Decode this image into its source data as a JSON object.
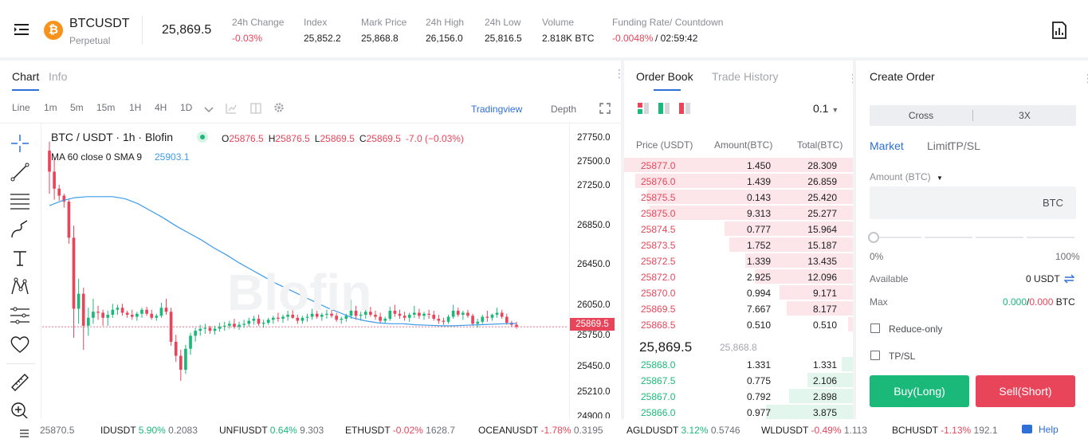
{
  "header": {
    "symbol": "BTCUSDT",
    "subtitle": "Perpetual",
    "coin_glyph": "₿",
    "price": "25,869.5",
    "stats": [
      {
        "label": "24h Change",
        "value": "-0.03%",
        "tone": "red"
      },
      {
        "label": "Index",
        "value": "25,852.2",
        "tone": ""
      },
      {
        "label": "Mark Price",
        "value": "25,868.8",
        "tone": ""
      },
      {
        "label": "24h High",
        "value": "26,156.0",
        "tone": ""
      },
      {
        "label": "24h Low",
        "value": "25,816.5",
        "tone": ""
      },
      {
        "label": "Volume",
        "value": "2.818K BTC",
        "tone": ""
      },
      {
        "label": "Funding Rate/ Countdown",
        "value": "-0.0048%",
        "value2": " / 02:59:42",
        "tone": "red"
      }
    ]
  },
  "chart_panel": {
    "tabs": [
      "Chart",
      "Info"
    ],
    "timeframes": [
      "Line",
      "1m",
      "5m",
      "15m",
      "1H",
      "4H",
      "1D"
    ],
    "active_timeframe": "1H",
    "view_tradingview": "Tradingview",
    "view_depth": "Depth",
    "legend_title": "BTC / USDT · 1h · Blofin",
    "ohlc": [
      {
        "k": "O",
        "v": "25876.5"
      },
      {
        "k": "H",
        "v": "25876.5"
      },
      {
        "k": "L",
        "v": "25869.5"
      },
      {
        "k": "C",
        "v": "25869.5"
      }
    ],
    "ohlc_change": "-7.0 (−0.03%)",
    "ma_label": "MA 60 close 0 SMA 9",
    "ma_value": "25903.1",
    "watermark": "Blofin",
    "y_ticks": [
      "27750.0",
      "27500.0",
      "27250.0",
      "26850.0",
      "26450.0",
      "26050.0",
      "25750.0",
      "25450.0",
      "25210.0",
      "24900.0"
    ],
    "current_price_tag": "25869.5",
    "up_color": "#1ab97a",
    "down_color": "#e8455a",
    "ma_color": "#3d9be9"
  },
  "chart_data": {
    "type": "candlestick",
    "series_name": "BTC / USDT · 1h",
    "ma_name": "MA 60 close 0 SMA 9",
    "ylim": [
      24900,
      27800
    ],
    "candles": [
      [
        27630,
        27720,
        27200,
        27420
      ],
      [
        27420,
        27560,
        27140,
        27250
      ],
      [
        27250,
        27290,
        27130,
        27180
      ],
      [
        27180,
        27200,
        27060,
        27120
      ],
      [
        27120,
        27140,
        26700,
        26760
      ],
      [
        26760,
        26880,
        25760,
        26050
      ],
      [
        26050,
        26350,
        25900,
        26200
      ],
      [
        26200,
        26260,
        25640,
        25880
      ],
      [
        25880,
        26060,
        25780,
        25960
      ],
      [
        25960,
        26150,
        25900,
        26020
      ],
      [
        26020,
        26080,
        25940,
        26010
      ],
      [
        26010,
        26040,
        25880,
        25960
      ],
      [
        25960,
        26030,
        25880,
        25990
      ],
      [
        25990,
        26100,
        25960,
        26040
      ],
      [
        26040,
        26090,
        25990,
        26060
      ],
      [
        26060,
        26100,
        25980,
        26010
      ],
      [
        26010,
        26030,
        25960,
        25990
      ],
      [
        25990,
        26040,
        25940,
        25970
      ],
      [
        25970,
        26020,
        25930,
        26000
      ],
      [
        26000,
        26060,
        25960,
        26040
      ],
      [
        26040,
        26070,
        25980,
        26000
      ],
      [
        26000,
        26040,
        25940,
        25960
      ],
      [
        25960,
        26000,
        25930,
        25980
      ],
      [
        25980,
        26110,
        25960,
        26060
      ],
      [
        26060,
        26150,
        25990,
        26020
      ],
      [
        26020,
        26060,
        25680,
        25720
      ],
      [
        25720,
        25790,
        25520,
        25580
      ],
      [
        25580,
        25640,
        25330,
        25440
      ],
      [
        25440,
        25690,
        25400,
        25650
      ],
      [
        25650,
        25810,
        25590,
        25780
      ],
      [
        25780,
        25860,
        25720,
        25830
      ],
      [
        25830,
        25890,
        25780,
        25850
      ],
      [
        25850,
        25900,
        25800,
        25860
      ],
      [
        25860,
        25880,
        25800,
        25830
      ],
      [
        25830,
        25880,
        25790,
        25850
      ],
      [
        25850,
        25910,
        25820,
        25870
      ],
      [
        25870,
        25920,
        25830,
        25880
      ],
      [
        25880,
        25930,
        25850,
        25900
      ],
      [
        25900,
        25950,
        25850,
        25870
      ],
      [
        25870,
        25920,
        25840,
        25890
      ],
      [
        25890,
        25940,
        25860,
        25900
      ],
      [
        25900,
        25960,
        25870,
        25930
      ],
      [
        25930,
        25980,
        25890,
        25950
      ],
      [
        25950,
        25990,
        25880,
        25900
      ],
      [
        25900,
        25940,
        25860,
        25910
      ],
      [
        25910,
        25960,
        25890,
        25940
      ],
      [
        25940,
        25980,
        25900,
        25960
      ],
      [
        25960,
        26010,
        25920,
        25950
      ],
      [
        25950,
        25990,
        25910,
        25970
      ],
      [
        25970,
        26030,
        25930,
        25990
      ],
      [
        25990,
        26060,
        25950,
        25960
      ],
      [
        25960,
        25990,
        25900,
        25930
      ],
      [
        25930,
        25980,
        25900,
        25960
      ],
      [
        25960,
        26000,
        25920,
        25970
      ],
      [
        25970,
        26050,
        25940,
        26000
      ],
      [
        26000,
        26030,
        25950,
        25970
      ],
      [
        25970,
        26010,
        25930,
        25990
      ],
      [
        25990,
        26040,
        25950,
        26000
      ],
      [
        26000,
        26050,
        25960,
        25980
      ],
      [
        25980,
        26010,
        25920,
        25940
      ],
      [
        25940,
        25970,
        25900,
        25950
      ],
      [
        25950,
        26000,
        25920,
        25980
      ],
      [
        25980,
        26140,
        25950,
        26030
      ],
      [
        26030,
        26080,
        25940,
        25980
      ],
      [
        25980,
        26020,
        25930,
        25990
      ],
      [
        25990,
        26060,
        25950,
        26020
      ],
      [
        26020,
        26070,
        25970,
        25990
      ],
      [
        25990,
        26030,
        25940,
        25970
      ],
      [
        25970,
        26010,
        25900,
        25930
      ],
      [
        25930,
        25970,
        25900,
        25950
      ],
      [
        25950,
        26070,
        25930,
        26030
      ],
      [
        26030,
        26090,
        25970,
        26000
      ],
      [
        26000,
        26040,
        25950,
        25980
      ],
      [
        25980,
        26020,
        25930,
        25960
      ],
      [
        25960,
        26010,
        25920,
        25990
      ],
      [
        25990,
        26080,
        25960,
        26010
      ],
      [
        26010,
        26050,
        25950,
        25980
      ],
      [
        25980,
        26020,
        25940,
        26000
      ],
      [
        26000,
        26040,
        25950,
        25990
      ],
      [
        25990,
        26030,
        25930,
        25950
      ],
      [
        25950,
        25990,
        25900,
        25930
      ],
      [
        25930,
        25960,
        25890,
        25920
      ],
      [
        25920,
        25990,
        25900,
        25970
      ],
      [
        25970,
        26090,
        25950,
        26030
      ],
      [
        26030,
        26060,
        25970,
        25990
      ],
      [
        25990,
        26030,
        25940,
        26010
      ],
      [
        26010,
        26040,
        25960,
        25980
      ],
      [
        25980,
        26000,
        25880,
        25900
      ],
      [
        25900,
        25950,
        25860,
        25920
      ],
      [
        25920,
        25990,
        25900,
        25970
      ],
      [
        25970,
        26030,
        25920,
        25960
      ],
      [
        25960,
        26000,
        25930,
        25990
      ],
      [
        25990,
        26060,
        25960,
        26010
      ],
      [
        26010,
        26040,
        25950,
        25970
      ],
      [
        25970,
        26000,
        25890,
        25910
      ],
      [
        25910,
        25930,
        25870,
        25890
      ],
      [
        25890,
        25920,
        25850,
        25870
      ]
    ],
    "ma": [
      27080,
      27130,
      27160,
      27170,
      27170,
      27170,
      27150,
      27100,
      27030,
      26960,
      26880,
      26810,
      26740,
      26660,
      26590,
      26510,
      26440,
      26370,
      26300,
      26240,
      26180,
      26120,
      26060,
      26010,
      25960,
      25930,
      25910,
      25900,
      25900,
      25890,
      25885,
      25880,
      25880,
      25885,
      25890,
      25895,
      25900,
      25903
    ]
  },
  "order_book": {
    "tabs": [
      "Order Book",
      "Trade History"
    ],
    "precision": "0.1",
    "headers": [
      "Price (USDT)",
      "Amount(BTC)",
      "Total(BTC)"
    ],
    "asks": [
      {
        "p": "25877.0",
        "a": "1.450",
        "t": "28.309",
        "d": 1.0
      },
      {
        "p": "25876.0",
        "a": "1.439",
        "t": "26.859",
        "d": 0.95
      },
      {
        "p": "25875.5",
        "a": "0.143",
        "t": "25.420",
        "d": 0.9
      },
      {
        "p": "25875.0",
        "a": "9.313",
        "t": "25.277",
        "d": 0.89
      },
      {
        "p": "25874.5",
        "a": "0.777",
        "t": "15.964",
        "d": 0.56
      },
      {
        "p": "25873.5",
        "a": "1.752",
        "t": "15.187",
        "d": 0.54
      },
      {
        "p": "25872.5",
        "a": "1.339",
        "t": "13.435",
        "d": 0.47
      },
      {
        "p": "25872.0",
        "a": "2.925",
        "t": "12.096",
        "d": 0.43
      },
      {
        "p": "25870.0",
        "a": "0.994",
        "t": "9.171",
        "d": 0.32
      },
      {
        "p": "25869.5",
        "a": "7.667",
        "t": "8.177",
        "d": 0.29
      },
      {
        "p": "25868.5",
        "a": "0.510",
        "t": "0.510",
        "d": 0.02
      }
    ],
    "mid_price": "25,869.5",
    "mark": "25,868.8",
    "bids": [
      {
        "p": "25868.0",
        "a": "1.331",
        "t": "1.331",
        "d": 0.05
      },
      {
        "p": "25867.5",
        "a": "0.775",
        "t": "2.106",
        "d": 0.2
      },
      {
        "p": "25867.0",
        "a": "0.792",
        "t": "2.898",
        "d": 0.28
      },
      {
        "p": "25866.0",
        "a": "0.977",
        "t": "3.875",
        "d": 0.38
      }
    ]
  },
  "order_form": {
    "title": "Create Order",
    "margin_mode": "Cross",
    "leverage": "3X",
    "types": [
      "Market",
      "Limit",
      "TP/SL"
    ],
    "amount_label": "Amount (BTC)",
    "amount_unit": "BTC",
    "slider_min": "0%",
    "slider_max": "100%",
    "available_label": "Available",
    "available_value": "0 USDT",
    "max_label": "Max",
    "max_buy": "0.000",
    "max_sep": "/",
    "max_sell": "0.000",
    "max_unit": "BTC",
    "reduce_only": "Reduce-only",
    "tpsl": "TP/SL",
    "buy": "Buy(Long)",
    "sell": "Sell(Short)"
  },
  "ticker_bar": {
    "first_price": "25870.5",
    "items": [
      {
        "s": "IDUSDT",
        "c": "5.90%",
        "p": "0.2083",
        "tone": "grn"
      },
      {
        "s": "UNFIUSDT",
        "c": "0.64%",
        "p": "9.303",
        "tone": "grn"
      },
      {
        "s": "ETHUSDT",
        "c": "-0.02%",
        "p": "1628.7",
        "tone": "red"
      },
      {
        "s": "OCEANUSDT",
        "c": "-1.78%",
        "p": "0.3195",
        "tone": "red"
      },
      {
        "s": "AGLDUSDT",
        "c": "3.12%",
        "p": "0.5746",
        "tone": "grn"
      },
      {
        "s": "WLDUSDT",
        "c": "-0.49%",
        "p": "1.113",
        "tone": "red"
      },
      {
        "s": "BCHUSDT",
        "c": "-1.13%",
        "p": "192.1",
        "tone": "red"
      }
    ],
    "help": "Help"
  }
}
